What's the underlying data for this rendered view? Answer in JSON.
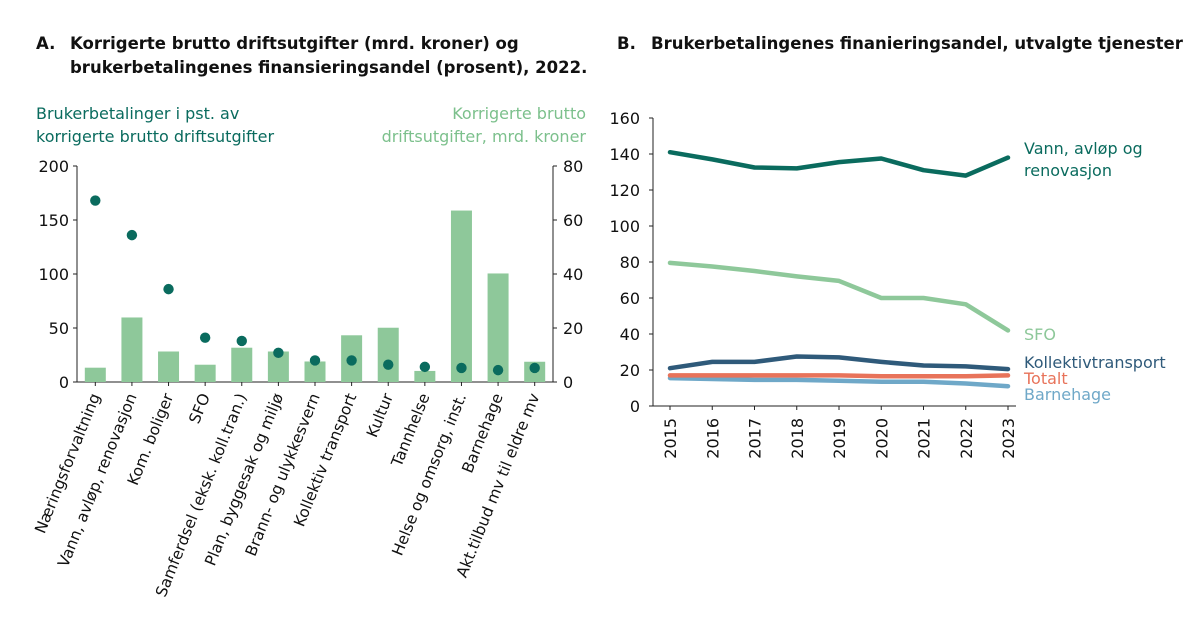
{
  "colors": {
    "bar": "#8ec89a",
    "dot": "#0a6b5e",
    "right_axis_label": "#7cc08c",
    "left_axis_label": "#0a6b5e",
    "vann": "#0a6b5e",
    "sfo": "#8ec89a",
    "kollektiv": "#2f5a7a",
    "totalt": "#e8735a",
    "barnehage": "#6fa8c8"
  },
  "chart_data": [
    {
      "type": "bar",
      "panel": "A",
      "title_prefix": "A.",
      "title_line1": "Korrigerte brutto driftsutgifter (mrd. kroner) og",
      "title_line2": "brukerbetalingenes finansieringsandel (prosent), 2022.",
      "left_axis_label_line1": "Brukerbetalinger i pst. av",
      "left_axis_label_line2": "korrigerte brutto driftsutgifter",
      "right_axis_label_line1": "Korrigerte brutto",
      "right_axis_label_line2": "driftsutgifter, mrd. kroner",
      "left_ylim": [
        0,
        200
      ],
      "left_ticks": [
        0,
        50,
        100,
        150,
        200
      ],
      "right_ylim": [
        0,
        80
      ],
      "right_ticks": [
        0,
        20,
        40,
        60,
        80
      ],
      "categories": [
        "Næringsforvaltning",
        "Vann, avløp, renovasjon",
        "Kom. boliger",
        "SFO",
        "Samferdsel (eksk. koll.tran.)",
        "Plan, byggesak og miljø",
        "Brann- og ulykkesvern",
        "Kollektiv transport",
        "Kultur",
        "Tannhelse",
        "Helse og omsorg, inst.",
        "Barnehage",
        "Akt.tilbud mv til eldre mv"
      ],
      "series": [
        {
          "name": "Korrigerte brutto driftsutgifter, mrd. kroner",
          "axis": "right",
          "kind": "bar",
          "values": [
            5.3,
            23.9,
            11.3,
            6.4,
            12.7,
            11.3,
            7.6,
            17.3,
            20.1,
            4.1,
            63.5,
            40.2,
            7.5
          ]
        },
        {
          "name": "Brukerbetalinger i pst. av korrigerte brutto driftsutgifter",
          "axis": "left",
          "kind": "dot",
          "values": [
            168,
            136,
            86,
            41,
            38,
            27,
            20,
            20,
            16,
            14,
            13,
            11,
            13
          ]
        }
      ]
    },
    {
      "type": "line",
      "panel": "B",
      "title_prefix": "B.",
      "title": "Brukerbetalingenes finanieringsandel, utvalgte tjenester",
      "x": [
        2015,
        2016,
        2017,
        2018,
        2019,
        2020,
        2021,
        2022,
        2023
      ],
      "ylim": [
        0,
        160
      ],
      "yticks": [
        0,
        20,
        40,
        60,
        80,
        100,
        120,
        140,
        160
      ],
      "series": [
        {
          "key": "vann",
          "name_line1": "Vann, avløp og",
          "name_line2": "renovasjon",
          "values": [
            141,
            137,
            132.5,
            132,
            135.5,
            137.5,
            131,
            128,
            138
          ]
        },
        {
          "key": "sfo",
          "name_line1": "SFO",
          "name_line2": "",
          "values": [
            79.5,
            77.5,
            75,
            72,
            69.5,
            60,
            60,
            56.5,
            42
          ]
        },
        {
          "key": "kollektiv",
          "name_line1": "Kollektivtransport",
          "name_line2": "",
          "values": [
            21,
            24.5,
            24.5,
            27.5,
            27,
            24.5,
            22.5,
            22,
            20.5
          ]
        },
        {
          "key": "totalt",
          "name_line1": "Totalt",
          "name_line2": "",
          "values": [
            17,
            17,
            17,
            17,
            17,
            16.5,
            16.5,
            16.5,
            17
          ]
        },
        {
          "key": "barnehage",
          "name_line1": "Barnehage",
          "name_line2": "",
          "values": [
            15.5,
            15,
            14.5,
            14.5,
            14,
            13.5,
            13.5,
            12.5,
            11
          ]
        }
      ]
    }
  ]
}
